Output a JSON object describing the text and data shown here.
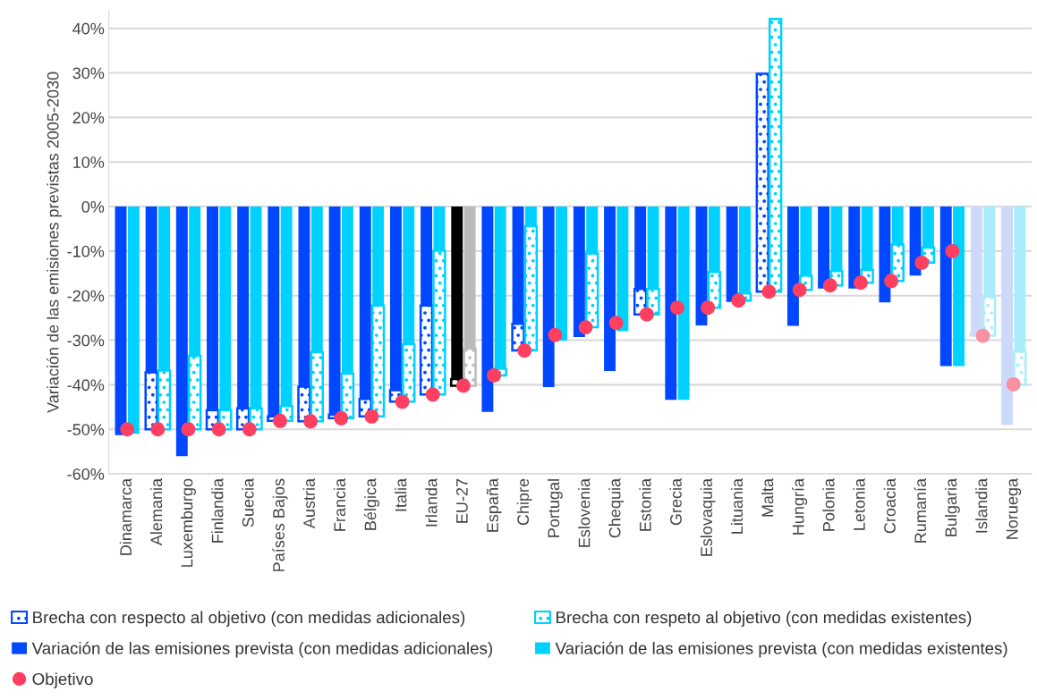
{
  "chart_data": {
    "type": "bar",
    "ylabel": "Variación de las emisiones previstas 2005-2030",
    "categories": [
      "Dinamarca",
      "Alemania",
      "Luxemburgo",
      "Finlandia",
      "Suecia",
      "Países Bajos",
      "Austria",
      "Francia",
      "Bélgica",
      "Italia",
      "Irlanda",
      "EU-27",
      "España",
      "Chipre",
      "Portugal",
      "Eslovenia",
      "Chequia",
      "Estonia",
      "Grecia",
      "Eslovaquia",
      "Lituania",
      "Malta",
      "Hungría",
      "Polonia",
      "Letonia",
      "Croacia",
      "Rumanía",
      "Bulgaria",
      "Islandia",
      "Noruega"
    ],
    "series": [
      {
        "name": "Brecha con respecto al objetivo (con medidas adicionales)",
        "color": "#0047ff",
        "colors": [
          "#0047ff",
          "#0047ff",
          "#0047ff",
          "#0047ff",
          "#0047ff",
          "#0047ff",
          "#0047ff",
          "#0047ff",
          "#0047ff",
          "#0047ff",
          "#0047ff",
          "#000000",
          "#0047ff",
          "#0047ff",
          "#0047ff",
          "#0047ff",
          "#0047ff",
          "#0047ff",
          "#0047ff",
          "#0047ff",
          "#0047ff",
          "#0047ff",
          "#0047ff",
          "#0047ff",
          "#0047ff",
          "#0047ff",
          "#0047ff",
          "#0047ff",
          "#cdd9fb",
          "#cdd9fb"
        ],
        "base": [
          null,
          -37.2,
          null,
          -45.7,
          -45.3,
          -47.1,
          -40.4,
          -46.7,
          -43.2,
          -41.2,
          -22.2,
          -38.7,
          null,
          -26.3,
          null,
          null,
          null,
          -18.5,
          null,
          null,
          null,
          29.8,
          null,
          null,
          null,
          null,
          null,
          null,
          -28.5,
          null
        ],
        "values": [
          null,
          -12.8,
          null,
          -4.3,
          -4.7,
          -1.0,
          -7.8,
          -0.8,
          -3.9,
          -2.6,
          -20.0,
          -1.5,
          null,
          -6.0,
          null,
          null,
          null,
          -5.7,
          null,
          null,
          null,
          -48.9,
          null,
          null,
          null,
          null,
          null,
          null,
          -0.5,
          null
        ]
      },
      {
        "name": "Brecha con respeto al objetivo (con medidas existentes)",
        "color": "#00d2ff",
        "colors": [
          "#00d2ff",
          "#00d2ff",
          "#00d2ff",
          "#00d2ff",
          "#00d2ff",
          "#00d2ff",
          "#00d2ff",
          "#00d2ff",
          "#00d2ff",
          "#00d2ff",
          "#00d2ff",
          "#bbbbbb",
          "#00d2ff",
          "#00d2ff",
          "#00d2ff",
          "#00d2ff",
          "#00d2ff",
          "#00d2ff",
          "#00d2ff",
          "#00d2ff",
          "#00d2ff",
          "#00d2ff",
          "#00d2ff",
          "#00d2ff",
          "#00d2ff",
          "#00d2ff",
          "#00d2ff",
          "#00d2ff",
          "#aaecfb",
          "#aaecfb"
        ],
        "base": [
          null,
          -36.8,
          -33.5,
          -45.7,
          -45.3,
          -44.8,
          -32.7,
          -37.5,
          -22.2,
          -30.9,
          -9.9,
          -31.9,
          -36.4,
          -4.4,
          null,
          -10.5,
          null,
          -18.5,
          null,
          -14.7,
          -19.5,
          42.1,
          -15.5,
          -14.5,
          -14.2,
          -8.5,
          -9.2,
          null,
          -20.2,
          -32.6
        ],
        "values": [
          null,
          -13.2,
          -16.5,
          -4.3,
          -4.7,
          -3.3,
          -15.5,
          -10.0,
          -24.9,
          -12.9,
          -32.3,
          -8.3,
          -1.5,
          -27.9,
          null,
          -16.6,
          null,
          -5.7,
          null,
          -8.0,
          -1.6,
          -61.2,
          -3.2,
          -3.2,
          -2.9,
          -8.2,
          -3.4,
          null,
          -8.8,
          -7.3
        ]
      },
      {
        "name": "Variación de las emisiones prevista (con medidas adicionales)",
        "color": "#0047ff",
        "colors": [
          "#0047ff",
          "#0047ff",
          "#0047ff",
          "#0047ff",
          "#0047ff",
          "#0047ff",
          "#0047ff",
          "#0047ff",
          "#0047ff",
          "#0047ff",
          "#0047ff",
          "#000000",
          "#0047ff",
          "#0047ff",
          "#0047ff",
          "#0047ff",
          "#0047ff",
          "#0047ff",
          "#0047ff",
          "#0047ff",
          "#0047ff",
          "#0047ff",
          "#0047ff",
          "#0047ff",
          "#0047ff",
          "#0047ff",
          "#0047ff",
          "#0047ff",
          "#cdd9fb",
          "#cdd9fb"
        ],
        "values": [
          -51.3,
          -37.2,
          -56.0,
          -45.7,
          -45.3,
          -47.1,
          -40.4,
          -46.7,
          -43.2,
          -41.2,
          -22.2,
          -38.7,
          -46.1,
          -26.3,
          -40.5,
          -29.3,
          -36.9,
          -18.5,
          -43.4,
          -26.7,
          -21.4,
          null,
          -26.8,
          -18.4,
          -18.4,
          -21.5,
          -15.5,
          -35.8,
          -28.5,
          -49.0
        ]
      },
      {
        "name": "Variación de las emisiones prevista (con medidas existentes)",
        "color": "#00d2ff",
        "colors": [
          "#00d2ff",
          "#00d2ff",
          "#00d2ff",
          "#00d2ff",
          "#00d2ff",
          "#00d2ff",
          "#00d2ff",
          "#00d2ff",
          "#00d2ff",
          "#00d2ff",
          "#00d2ff",
          "#bbbbbb",
          "#00d2ff",
          "#00d2ff",
          "#00d2ff",
          "#00d2ff",
          "#00d2ff",
          "#00d2ff",
          "#00d2ff",
          "#00d2ff",
          "#00d2ff",
          "#00d2ff",
          "#00d2ff",
          "#00d2ff",
          "#00d2ff",
          "#00d2ff",
          "#00d2ff",
          "#00d2ff",
          "#aaecfb",
          "#aaecfb"
        ],
        "values": [
          -51.0,
          -36.8,
          -33.5,
          -45.7,
          -45.3,
          -44.8,
          -32.7,
          -37.5,
          -22.2,
          -30.9,
          -9.9,
          -31.9,
          -36.4,
          -4.4,
          -30.1,
          -10.5,
          -28.0,
          -18.5,
          -43.4,
          -14.7,
          -19.5,
          null,
          -15.5,
          -14.5,
          -14.2,
          -8.5,
          -9.2,
          -35.8,
          -20.2,
          -32.6
        ]
      },
      {
        "name": "Objetivo",
        "type": "scatter",
        "marker": "circle",
        "color": "#ff3f5f",
        "colors": [
          "#ff3f5f",
          "#ff3f5f",
          "#ff3f5f",
          "#ff3f5f",
          "#ff3f5f",
          "#ff3f5f",
          "#ff3f5f",
          "#ff3f5f",
          "#ff3f5f",
          "#ff3f5f",
          "#ff3f5f",
          "#ff3f5f",
          "#ff3f5f",
          "#ff3f5f",
          "#ff3f5f",
          "#ff3f5f",
          "#ff3f5f",
          "#ff3f5f",
          "#ff3f5f",
          "#ff3f5f",
          "#ff3f5f",
          "#ff3f5f",
          "#ff3f5f",
          "#ff3f5f",
          "#ff3f5f",
          "#ff3f5f",
          "#ff3f5f",
          "#ff3f5f",
          "#f9909f",
          "#f9909f"
        ],
        "values": [
          -50,
          -50,
          -50,
          -50,
          -50,
          -48.1,
          -48.2,
          -47.5,
          -47.1,
          -43.8,
          -42.2,
          -40.2,
          -37.9,
          -32.3,
          -28.8,
          -27.1,
          -26.1,
          -24.2,
          -22.7,
          -22.7,
          -21.1,
          -19.1,
          -18.7,
          -17.7,
          -17.1,
          -16.7,
          -12.6,
          -10.0,
          -29.0,
          -39.9
        ]
      }
    ],
    "ylim": [
      -60,
      44
    ],
    "yticks": [
      {
        "value": -60,
        "label": "-60%"
      },
      {
        "value": -50,
        "label": "-50%"
      },
      {
        "value": -40,
        "label": "-40%"
      },
      {
        "value": -30,
        "label": "-30%"
      },
      {
        "value": -20,
        "label": "-20%"
      },
      {
        "value": -10,
        "label": "-10%"
      },
      {
        "value": 0,
        "label": "0%"
      },
      {
        "value": 10,
        "label": "10%"
      },
      {
        "value": 20,
        "label": "20%"
      },
      {
        "value": 30,
        "label": "30%"
      },
      {
        "value": 40,
        "label": "40%"
      }
    ],
    "grid": "y",
    "legend": "bottom"
  }
}
